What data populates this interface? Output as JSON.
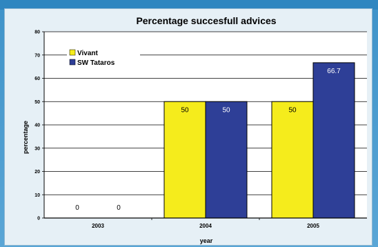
{
  "chart_data": {
    "type": "bar",
    "title": "Percentage succesfull advices",
    "xlabel": "year",
    "ylabel": "percentage",
    "categories": [
      "2003",
      "2004",
      "2005"
    ],
    "series": [
      {
        "name": "Vivant",
        "values": [
          0,
          50,
          50
        ],
        "color": "#f5ec1c"
      },
      {
        "name": "SW Tataros",
        "values": [
          0,
          50,
          66.7
        ],
        "color": "#2e3f97"
      }
    ],
    "data_labels": [
      [
        "0",
        "50",
        "50"
      ],
      [
        "0",
        "50",
        "66.7"
      ]
    ],
    "ylim": [
      0,
      80
    ],
    "yticks": [
      0,
      10,
      20,
      30,
      40,
      50,
      60,
      70,
      80
    ],
    "grid": true,
    "legend_position": "top-left"
  }
}
